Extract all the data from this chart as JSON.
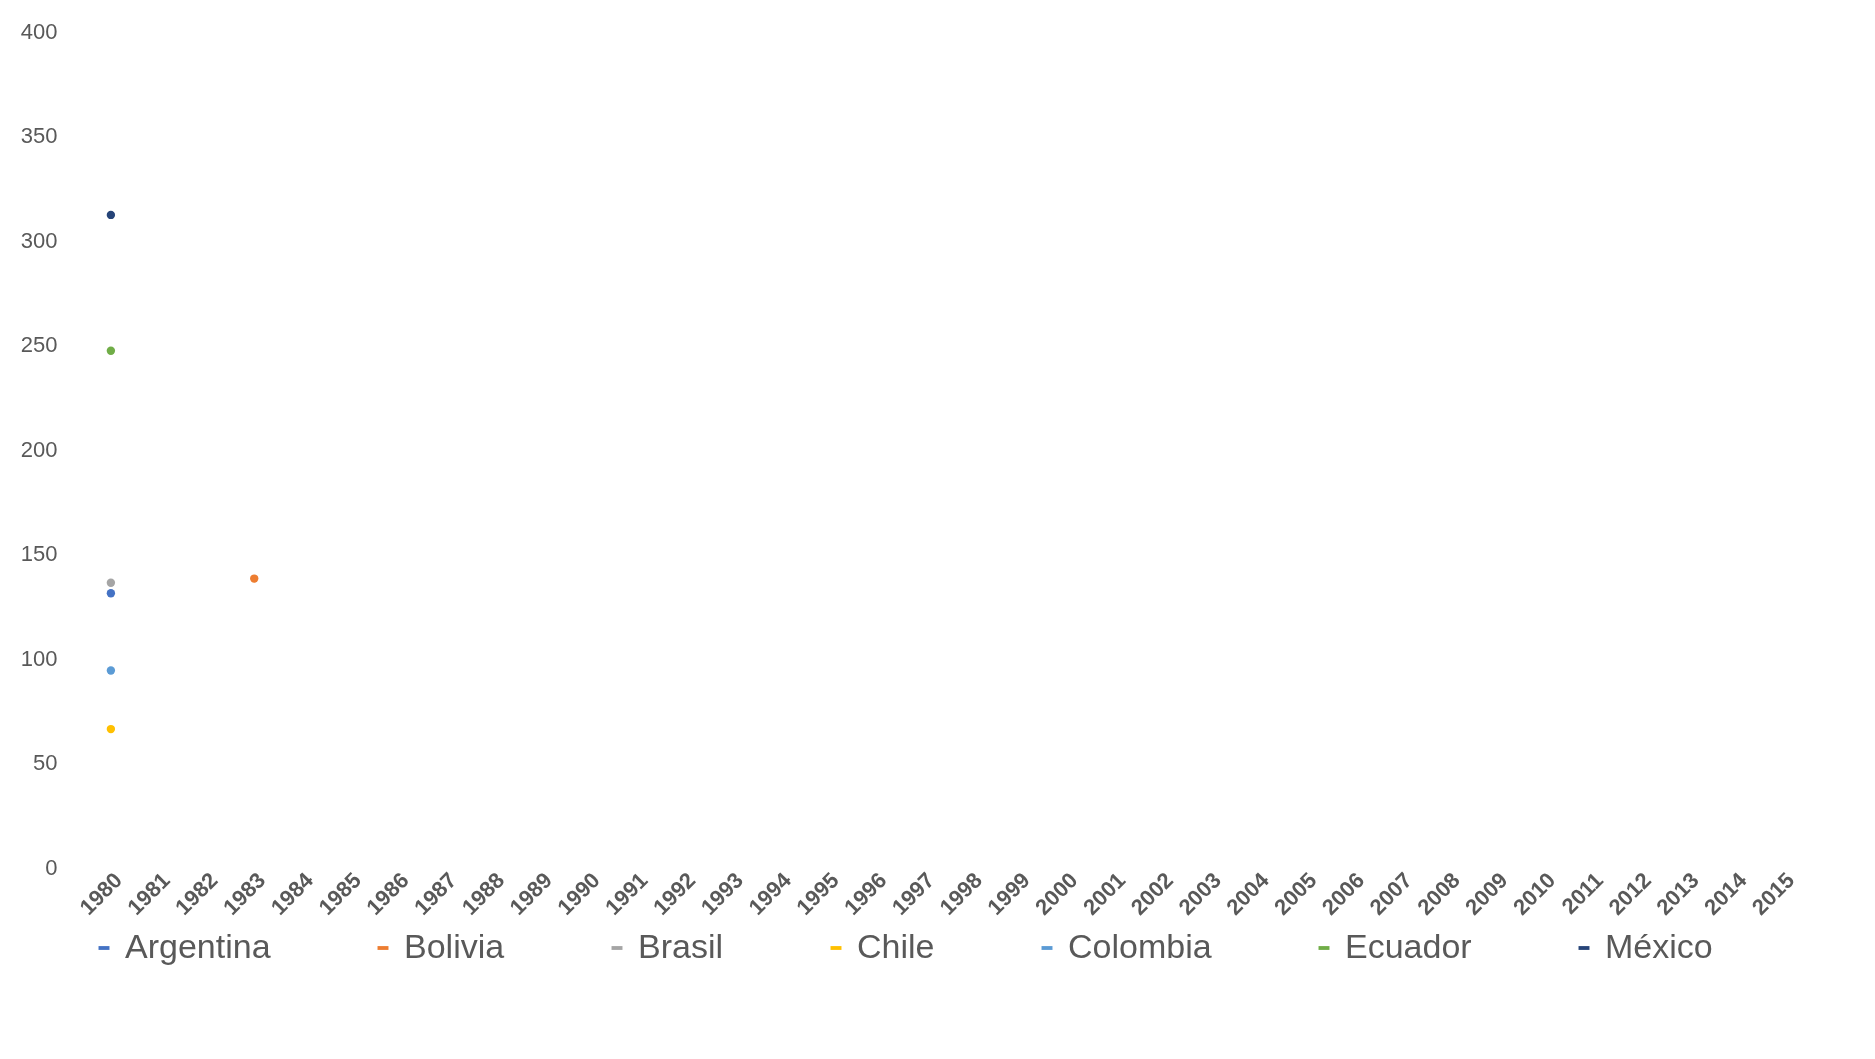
{
  "chart_data": {
    "type": "scatter",
    "categories": [
      "1980",
      "1981",
      "1982",
      "1983",
      "1984",
      "1985",
      "1986",
      "1987",
      "1988",
      "1989",
      "1990",
      "1991",
      "1992",
      "1993",
      "1994",
      "1995",
      "1996",
      "1997",
      "1998",
      "1999",
      "2000",
      "2001",
      "2002",
      "2003",
      "2004",
      "2005",
      "2006",
      "2007",
      "2008",
      "2009",
      "2010",
      "2011",
      "2012",
      "2013",
      "2014",
      "2015"
    ],
    "series": [
      {
        "name": "Argentina",
        "color": "#4472c4",
        "values": [
          131,
          null,
          null,
          null,
          null,
          null,
          null,
          null,
          null,
          null,
          null,
          null,
          null,
          null,
          null,
          null,
          null,
          null,
          null,
          null,
          null,
          null,
          null,
          null,
          null,
          null,
          null,
          null,
          null,
          null,
          null,
          null,
          null,
          null,
          null,
          null
        ]
      },
      {
        "name": "Bolivia",
        "color": "#ed7d31",
        "values": [
          null,
          null,
          null,
          138,
          null,
          null,
          null,
          null,
          null,
          null,
          null,
          null,
          null,
          null,
          null,
          null,
          null,
          null,
          null,
          null,
          null,
          null,
          null,
          null,
          null,
          null,
          null,
          null,
          null,
          null,
          null,
          null,
          null,
          null,
          null,
          null
        ]
      },
      {
        "name": "Brasil",
        "color": "#a5a5a5",
        "values": [
          136,
          null,
          null,
          null,
          null,
          null,
          null,
          null,
          null,
          null,
          null,
          null,
          null,
          null,
          null,
          null,
          null,
          null,
          null,
          null,
          null,
          null,
          null,
          null,
          null,
          null,
          null,
          null,
          null,
          null,
          null,
          null,
          null,
          null,
          null,
          null
        ]
      },
      {
        "name": "Chile",
        "color": "#ffc000",
        "values": [
          66,
          null,
          null,
          null,
          null,
          null,
          null,
          null,
          null,
          null,
          null,
          null,
          null,
          null,
          null,
          null,
          null,
          null,
          null,
          null,
          null,
          null,
          null,
          null,
          null,
          null,
          null,
          null,
          null,
          null,
          null,
          null,
          null,
          null,
          null,
          null
        ]
      },
      {
        "name": "Colombia",
        "color": "#5b9bd5",
        "values": [
          94,
          null,
          null,
          null,
          null,
          null,
          null,
          null,
          null,
          null,
          null,
          null,
          null,
          null,
          null,
          null,
          null,
          null,
          null,
          null,
          null,
          null,
          null,
          null,
          null,
          null,
          null,
          null,
          null,
          null,
          null,
          null,
          null,
          null,
          null,
          null
        ]
      },
      {
        "name": "Ecuador",
        "color": "#70ad47",
        "values": [
          247,
          null,
          null,
          null,
          null,
          null,
          null,
          null,
          null,
          null,
          null,
          null,
          null,
          null,
          null,
          null,
          null,
          null,
          null,
          null,
          null,
          null,
          null,
          null,
          null,
          null,
          null,
          null,
          null,
          null,
          null,
          null,
          null,
          null,
          null,
          null
        ]
      },
      {
        "name": "México",
        "color": "#264478",
        "values": [
          312,
          null,
          null,
          null,
          null,
          null,
          null,
          null,
          null,
          null,
          null,
          null,
          null,
          null,
          null,
          null,
          null,
          null,
          null,
          null,
          null,
          null,
          null,
          null,
          null,
          null,
          null,
          null,
          null,
          null,
          null,
          null,
          null,
          null,
          null,
          null
        ]
      }
    ],
    "ylim": [
      0,
      400
    ],
    "yticks": [
      0,
      50,
      100,
      150,
      200,
      250,
      300,
      350,
      400
    ],
    "legend": "bottom",
    "marker": "circle"
  }
}
